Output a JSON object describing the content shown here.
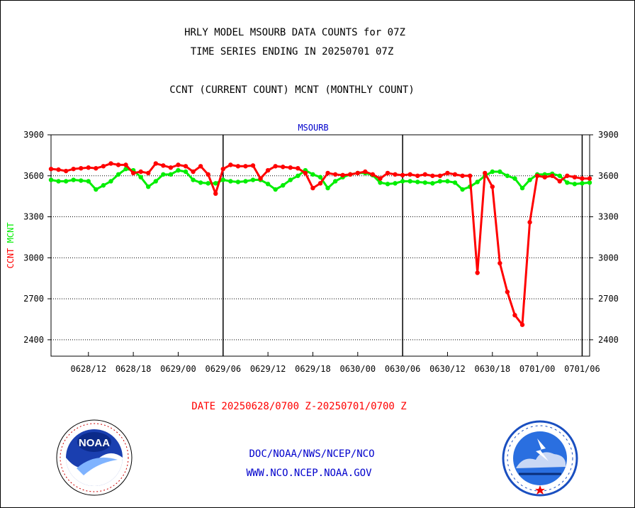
{
  "header": {
    "title_line1": "HRLY MODEL MSOURB DATA COUNTS for 07Z",
    "title_line2": "TIME SERIES ENDING IN 20250701 07Z",
    "subtitle": "CCNT (CURRENT COUNT) MCNT (MONTHLY COUNT)"
  },
  "footer": {
    "date_range": "DATE 20250628/0700 Z-20250701/0700 Z",
    "org_path": "DOC/NOAA/NWS/NCEP/NCO",
    "website": "WWW.NCO.NCEP.NOAA.GOV"
  },
  "logos": {
    "noaa": "noaa-logo",
    "nws": "national-weather-service-logo",
    "noaa_text": "NOAA"
  },
  "colors": {
    "ccnt": "#ff0000",
    "mcnt": "#00ee00",
    "title_blue": "#0000cc",
    "grid": "#000000"
  },
  "chart_data": {
    "type": "line",
    "title": "MSOURB",
    "ylabel_parts": [
      {
        "text": "CCNT",
        "color": "#ff0000"
      },
      {
        "text": "MCNT",
        "color": "#00ee00"
      }
    ],
    "ylim": [
      2280,
      3900
    ],
    "y_ticks": [
      2400,
      2700,
      3000,
      3300,
      3600,
      3900
    ],
    "y_tick_labels": [
      "2400",
      "2700",
      "3000",
      "3300",
      "3600",
      "3900"
    ],
    "grid": true,
    "x_start_hours": 0,
    "x_end_hours": 72,
    "x_tick_labels": [
      {
        "hour": 5,
        "label": "0628/12"
      },
      {
        "hour": 11,
        "label": "0628/18"
      },
      {
        "hour": 17,
        "label": "0629/00"
      },
      {
        "hour": 23,
        "label": "0629/06"
      },
      {
        "hour": 29,
        "label": "0629/12"
      },
      {
        "hour": 35,
        "label": "0629/18"
      },
      {
        "hour": 41,
        "label": "0630/00"
      },
      {
        "hour": 47,
        "label": "0630/06"
      },
      {
        "hour": 53,
        "label": "0630/12"
      },
      {
        "hour": 59,
        "label": "0630/18"
      },
      {
        "hour": 65,
        "label": "0701/00"
      },
      {
        "hour": 71,
        "label": "0701/06"
      }
    ],
    "day_boundaries_hours": [
      23,
      47,
      71
    ],
    "series": [
      {
        "id": "ccnt",
        "color": "#ff0000",
        "values": [
          3650,
          3645,
          3635,
          3650,
          3655,
          3660,
          3655,
          3670,
          3690,
          3680,
          3680,
          3620,
          3630,
          3620,
          3690,
          3675,
          3660,
          3680,
          3670,
          3630,
          3670,
          3610,
          3470,
          3650,
          3680,
          3670,
          3670,
          3675,
          3580,
          3640,
          3670,
          3665,
          3660,
          3655,
          3620,
          3510,
          3545,
          3620,
          3610,
          3605,
          3610,
          3620,
          3630,
          3610,
          3580,
          3620,
          3610,
          3605,
          3610,
          3600,
          3610,
          3600,
          3600,
          3620,
          3610,
          3600,
          3600,
          2890,
          3620,
          3520,
          2960,
          2750,
          2580,
          2510,
          3260,
          3600,
          3590,
          3600,
          3560,
          3600,
          3590,
          3580,
          3580
        ]
      },
      {
        "id": "mcnt",
        "color": "#00ee00",
        "values": [
          3570,
          3560,
          3560,
          3570,
          3565,
          3560,
          3500,
          3530,
          3560,
          3610,
          3650,
          3640,
          3590,
          3520,
          3560,
          3610,
          3610,
          3640,
          3630,
          3570,
          3550,
          3545,
          3545,
          3570,
          3560,
          3555,
          3560,
          3570,
          3570,
          3540,
          3500,
          3530,
          3570,
          3600,
          3640,
          3610,
          3590,
          3510,
          3560,
          3590,
          3610,
          3620,
          3620,
          3605,
          3550,
          3540,
          3545,
          3560,
          3560,
          3555,
          3550,
          3545,
          3560,
          3560,
          3550,
          3500,
          3520,
          3555,
          3600,
          3630,
          3630,
          3600,
          3580,
          3510,
          3570,
          3610,
          3610,
          3615,
          3600,
          3550,
          3540,
          3545,
          3550
        ]
      }
    ]
  }
}
